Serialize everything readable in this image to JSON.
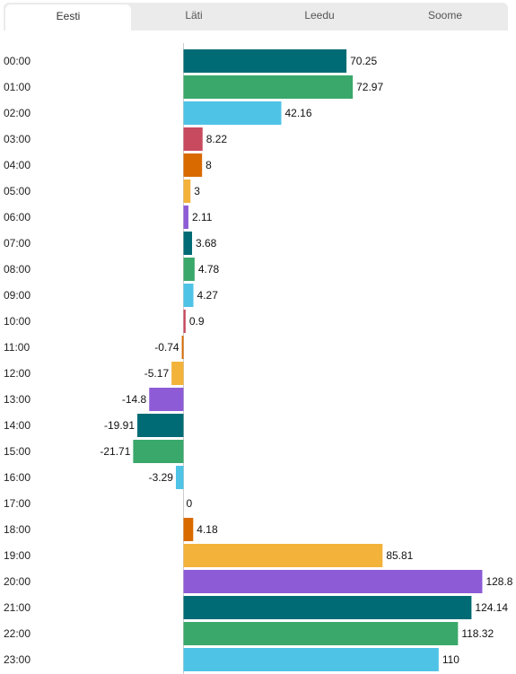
{
  "tabs": [
    {
      "label": "Eesti",
      "active": true
    },
    {
      "label": "Läti",
      "active": false
    },
    {
      "label": "Leedu",
      "active": false
    },
    {
      "label": "Soome",
      "active": false
    }
  ],
  "chart_data": {
    "type": "bar",
    "orientation": "horizontal",
    "title": "",
    "xlabel": "",
    "ylabel": "",
    "grid": false,
    "legend": "none",
    "categories": [
      "00:00",
      "01:00",
      "02:00",
      "03:00",
      "04:00",
      "05:00",
      "06:00",
      "07:00",
      "08:00",
      "09:00",
      "10:00",
      "11:00",
      "12:00",
      "13:00",
      "14:00",
      "15:00",
      "16:00",
      "17:00",
      "18:00",
      "19:00",
      "20:00",
      "21:00",
      "22:00",
      "23:00"
    ],
    "values": [
      70.25,
      72.97,
      42.16,
      8.22,
      8,
      3,
      2.11,
      3.68,
      4.78,
      4.27,
      0.9,
      -0.74,
      -5.17,
      -14.8,
      -19.91,
      -21.71,
      -3.29,
      0,
      4.18,
      85.81,
      128.8,
      124.14,
      118.32,
      110
    ],
    "bar_colors": [
      "#006b74",
      "#3aa86b",
      "#4fc3e6",
      "#c84a5e",
      "#d96a00",
      "#f3b23a",
      "#8e5bd6"
    ],
    "axis_color": "#cccccc"
  }
}
